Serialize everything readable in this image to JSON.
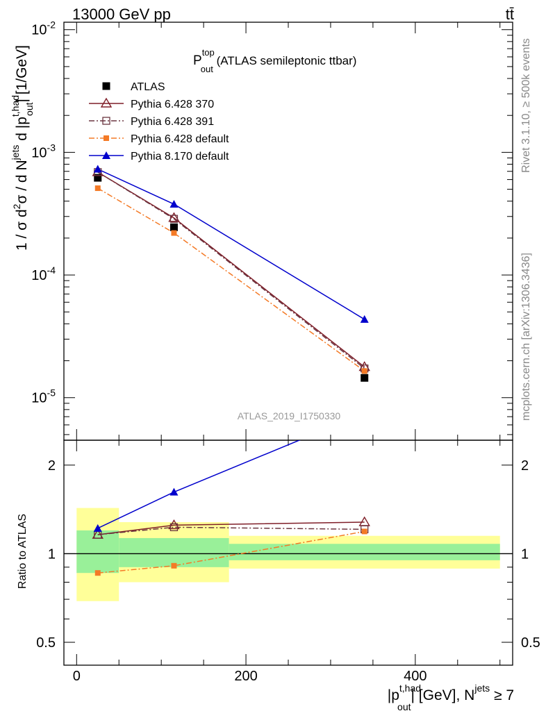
{
  "header": {
    "left": "13000 GeV pp",
    "right": "tt̄"
  },
  "side_labels": {
    "rivet": "Rivet 3.1.10, ≥ 500k events",
    "mcplots": "mcplots.cern.ch [arXiv:1306.3436]"
  },
  "title": {
    "main": "P",
    "sup": "top",
    "sub": "out",
    "rest": " (ATLAS semileptonic ttbar)"
  },
  "analysis_id": "ATLAS_2019_I1750330",
  "main_ylabel": "1 / σ d²σ / d N^jets d |p_out^t,had| [1/GeV]",
  "ratio_ylabel": "Ratio to ATLAS",
  "xlabel": "|p_out^t,had| [GeV], N^jets ≥ 7",
  "colors": {
    "data": "#000000",
    "p370": "#7f1e28",
    "p391": "#6b3540",
    "p6def": "#f47a26",
    "p8def": "#0000cc",
    "band_inner": "#99f099",
    "band_outer": "#ffff99"
  },
  "chart_data": [
    {
      "type": "line",
      "panel": "main",
      "yscale": "log",
      "xlim": [
        -15,
        515
      ],
      "ylim": [
        4.5e-06,
        0.0115
      ],
      "y_ticks": [
        {
          "value": 0.01,
          "label": "10^-2"
        },
        {
          "value": 0.001,
          "label": "10^-3"
        },
        {
          "value": 0.0001,
          "label": "10^-4"
        },
        {
          "value": 1e-05,
          "label": "10^-5"
        }
      ],
      "x": [
        25,
        115,
        340
      ],
      "bin_edges": [
        0,
        50,
        180,
        500
      ],
      "legend_position": "top-left",
      "series": [
        {
          "name": "ATLAS",
          "key": "data",
          "marker": "square-filled",
          "line": "none",
          "values": [
            0.00062,
            0.000245,
            1.45e-05
          ]
        },
        {
          "name": "Pythia 6.428 370",
          "key": "p370",
          "marker": "triangle-open",
          "line": "solid",
          "values": [
            0.00069,
            0.000292,
            1.78e-05
          ]
        },
        {
          "name": "Pythia 6.428 391",
          "key": "p391",
          "marker": "square-open",
          "line": "dashdot",
          "values": [
            0.00069,
            0.000287,
            1.73e-05
          ]
        },
        {
          "name": "Pythia 6.428 default",
          "key": "p6def",
          "marker": "square-filled-small",
          "line": "dashdot",
          "values": [
            0.00051,
            0.00022,
            1.65e-05
          ]
        },
        {
          "name": "Pythia 8.170 default",
          "key": "p8def",
          "marker": "triangle-filled",
          "line": "solid",
          "values": [
            0.00073,
            0.000378,
            4.35e-05
          ]
        }
      ]
    },
    {
      "type": "line",
      "panel": "ratio",
      "yscale": "log",
      "xlim": [
        -15,
        515
      ],
      "ylim": [
        0.418,
        2.43
      ],
      "y_ticks": [
        {
          "value": 2,
          "label": "2"
        },
        {
          "value": 1,
          "label": "1"
        },
        {
          "value": 0.5,
          "label": "0.5"
        }
      ],
      "x_ticks": [
        0,
        200,
        400
      ],
      "x": [
        25,
        115,
        340
      ],
      "bands": [
        {
          "x0": 0,
          "x1": 50,
          "outer": [
            0.69,
            1.43
          ],
          "inner": [
            0.86,
            1.2
          ]
        },
        {
          "x0": 50,
          "x1": 180,
          "outer": [
            0.8,
            1.28
          ],
          "inner": [
            0.9,
            1.13
          ]
        },
        {
          "x0": 180,
          "x1": 500,
          "outer": [
            0.89,
            1.15
          ],
          "inner": [
            0.95,
            1.08
          ]
        }
      ],
      "series": [
        {
          "name": "Pythia 6.428 370",
          "key": "p370",
          "values": [
            1.16,
            1.25,
            1.28
          ]
        },
        {
          "name": "Pythia 6.428 391",
          "key": "p391",
          "values": [
            1.16,
            1.23,
            1.21
          ]
        },
        {
          "name": "Pythia 6.428 default",
          "key": "p6def",
          "values": [
            0.86,
            0.91,
            1.19
          ]
        },
        {
          "name": "Pythia 8.170 default",
          "key": "p8def",
          "values": [
            1.22,
            1.62,
            3.0
          ]
        }
      ]
    }
  ]
}
